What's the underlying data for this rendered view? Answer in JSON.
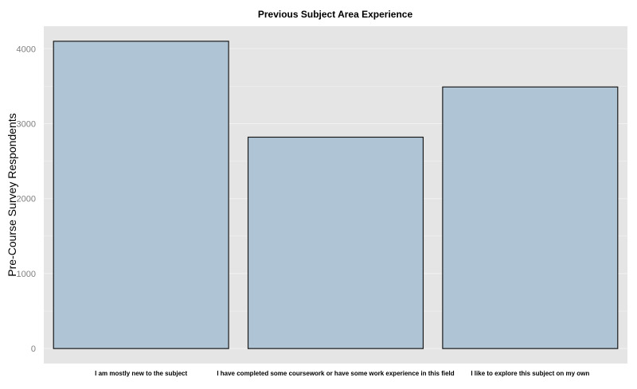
{
  "chart_data": {
    "type": "bar",
    "title": "Previous Subject Area Experience",
    "xlabel": "",
    "ylabel": "Pre-Course Survey Respondents",
    "categories": [
      "I am mostly new to the subject",
      "I have completed some coursework or have some work experience in this field",
      "I like to explore this subject on my own"
    ],
    "values": [
      4100,
      2820,
      3490
    ],
    "ylim": [
      -200,
      4300
    ],
    "yticks": [
      0,
      1000,
      2000,
      3000,
      4000
    ],
    "grid": true,
    "legend": "none",
    "colors": {
      "panel": "#e5e5e5",
      "grid": "#f2f2f2",
      "bar_fill": "#afc5d6",
      "bar_stroke": "#1a1a1a"
    }
  }
}
